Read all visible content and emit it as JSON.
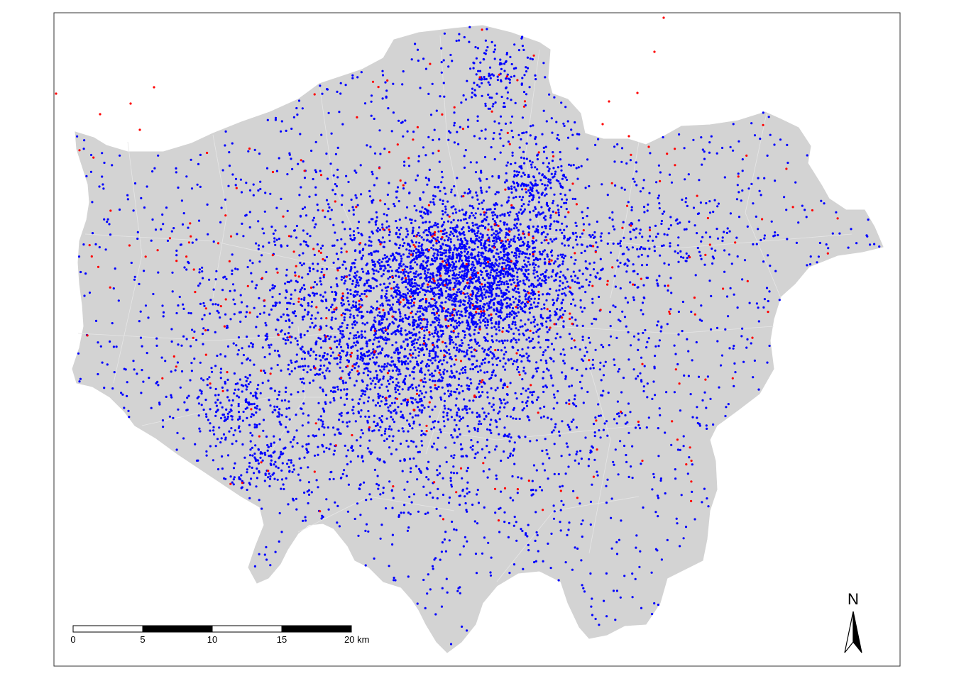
{
  "map": {
    "region_fill": "#d3d3d3",
    "boundary_stroke": "#e6e6e6",
    "point_colors": {
      "primary": "#0000ff",
      "secondary": "#ff0000"
    }
  },
  "scale_bar": {
    "ticks": [
      "0",
      "5",
      "10",
      "15",
      "20 km"
    ]
  },
  "north_arrow": {
    "label": "N"
  }
}
